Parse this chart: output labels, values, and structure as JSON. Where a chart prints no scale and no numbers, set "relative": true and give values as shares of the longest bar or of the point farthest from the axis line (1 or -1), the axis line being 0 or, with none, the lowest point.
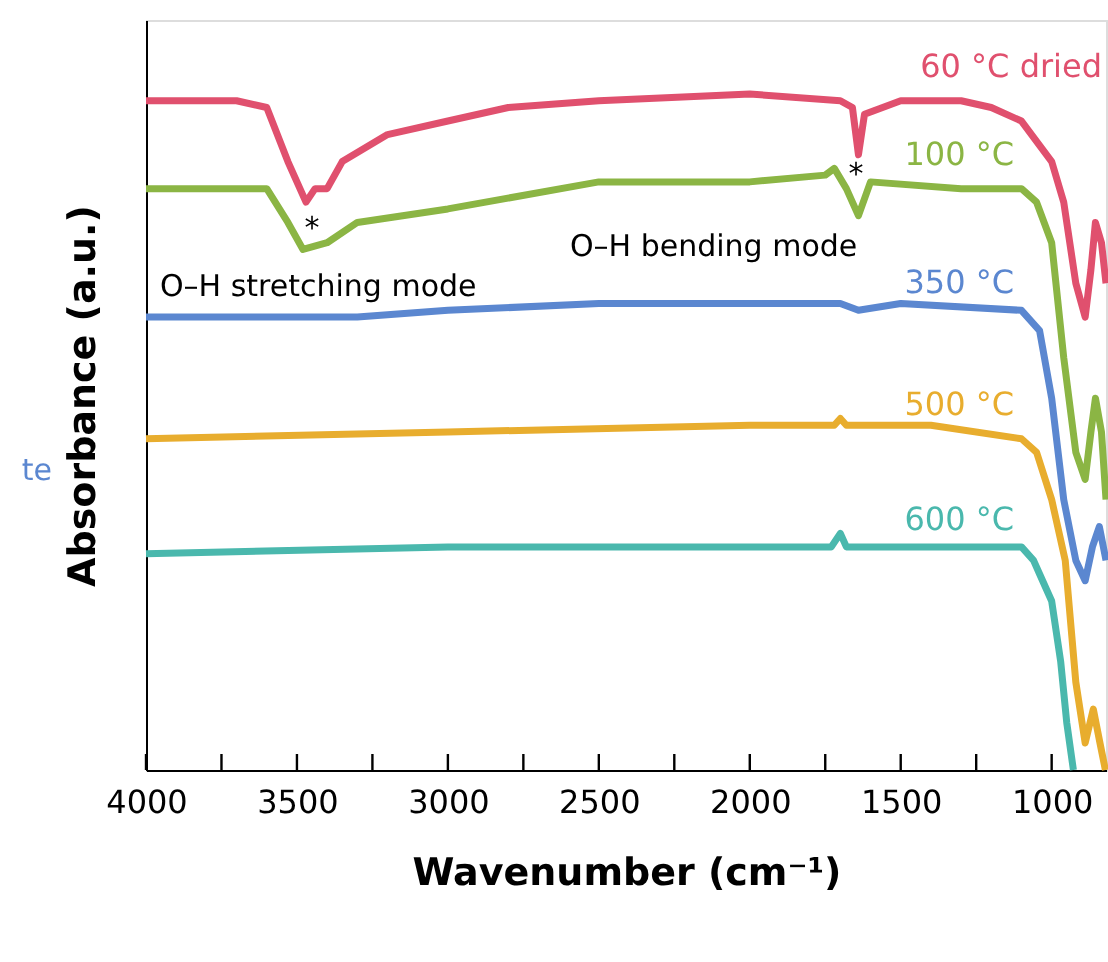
{
  "chart_data": {
    "type": "line",
    "relative": true,
    "xlabel": "Wavenumber (cm⁻¹)",
    "ylabel": "Absorbance (a.u.)",
    "xlim": [
      4000,
      820
    ],
    "xticks": [
      4000,
      {
        "value": 3750,
        "label": null
      },
      3500,
      {
        "value": 3250,
        "label": null
      },
      3000,
      {
        "value": 2750,
        "label": null
      },
      2500,
      {
        "value": 2250,
        "label": null
      },
      2000,
      {
        "value": 1750,
        "label": null
      },
      1500,
      {
        "value": 1250,
        "label": null
      },
      1000
    ],
    "tick_labels": "x",
    "grid": false,
    "marker": "none",
    "line_style": "solid",
    "series": [
      {
        "name": "60 °C dried",
        "color": "#e0506e",
        "x": [
          4000,
          3700,
          3600,
          3530,
          3470,
          3440,
          3400,
          3350,
          3200,
          3000,
          2800,
          2500,
          2000,
          1700,
          1660,
          1640,
          1620,
          1500,
          1300,
          1200,
          1100,
          1050,
          1000,
          960,
          920,
          889,
          870,
          855,
          835,
          820
        ],
        "values": [
          0.99,
          0.99,
          0.98,
          0.9,
          0.84,
          0.86,
          0.86,
          0.9,
          0.94,
          0.96,
          0.98,
          0.99,
          1.0,
          0.99,
          0.98,
          0.91,
          0.97,
          0.99,
          0.99,
          0.98,
          0.96,
          0.93,
          0.9,
          0.84,
          0.72,
          0.67,
          0.74,
          0.81,
          0.78,
          0.72
        ]
      },
      {
        "name": "100 °C",
        "color": "#8bb544",
        "x": [
          4000,
          3700,
          3600,
          3530,
          3480,
          3400,
          3300,
          3000,
          2500,
          2000,
          1750,
          1720,
          1680,
          1640,
          1600,
          1300,
          1100,
          1050,
          1000,
          960,
          920,
          889,
          870,
          855,
          835,
          820
        ],
        "values": [
          0.86,
          0.86,
          0.86,
          0.81,
          0.77,
          0.78,
          0.81,
          0.83,
          0.87,
          0.87,
          0.88,
          0.89,
          0.86,
          0.82,
          0.87,
          0.86,
          0.86,
          0.84,
          0.78,
          0.61,
          0.47,
          0.43,
          0.5,
          0.55,
          0.5,
          0.4
        ]
      },
      {
        "name": "350 °C",
        "color": "#5b87d0",
        "x": [
          4000,
          3700,
          3500,
          3300,
          3000,
          2500,
          2000,
          1700,
          1640,
          1500,
          1100,
          1040,
          1000,
          960,
          920,
          889,
          865,
          842,
          820
        ],
        "values": [
          0.67,
          0.67,
          0.67,
          0.67,
          0.68,
          0.69,
          0.69,
          0.69,
          0.68,
          0.69,
          0.68,
          0.65,
          0.55,
          0.4,
          0.31,
          0.28,
          0.33,
          0.36,
          0.31
        ]
      },
      {
        "name": "500 °C",
        "color": "#e8ad2e",
        "x": [
          4000,
          3000,
          2000,
          1720,
          1700,
          1680,
          1400,
          1100,
          1050,
          1000,
          955,
          920,
          889,
          862,
          840,
          822
        ],
        "values": [
          0.49,
          0.5,
          0.51,
          0.51,
          0.52,
          0.51,
          0.51,
          0.49,
          0.47,
          0.4,
          0.31,
          0.13,
          0.04,
          0.09,
          0.04,
          0
        ]
      },
      {
        "name": "600 °C",
        "color": "#4ab8ad",
        "x": [
          4000,
          3000,
          2000,
          1730,
          1700,
          1680,
          1100,
          1060,
          1040,
          1000,
          970,
          950,
          928
        ],
        "values": [
          0.32,
          0.33,
          0.33,
          0.33,
          0.35,
          0.33,
          0.33,
          0.31,
          0.29,
          0.25,
          0.16,
          0.07,
          0
        ]
      }
    ],
    "annotations": [
      "O–H stretching mode",
      "O–H bending mode",
      "*",
      "*",
      "te"
    ]
  }
}
